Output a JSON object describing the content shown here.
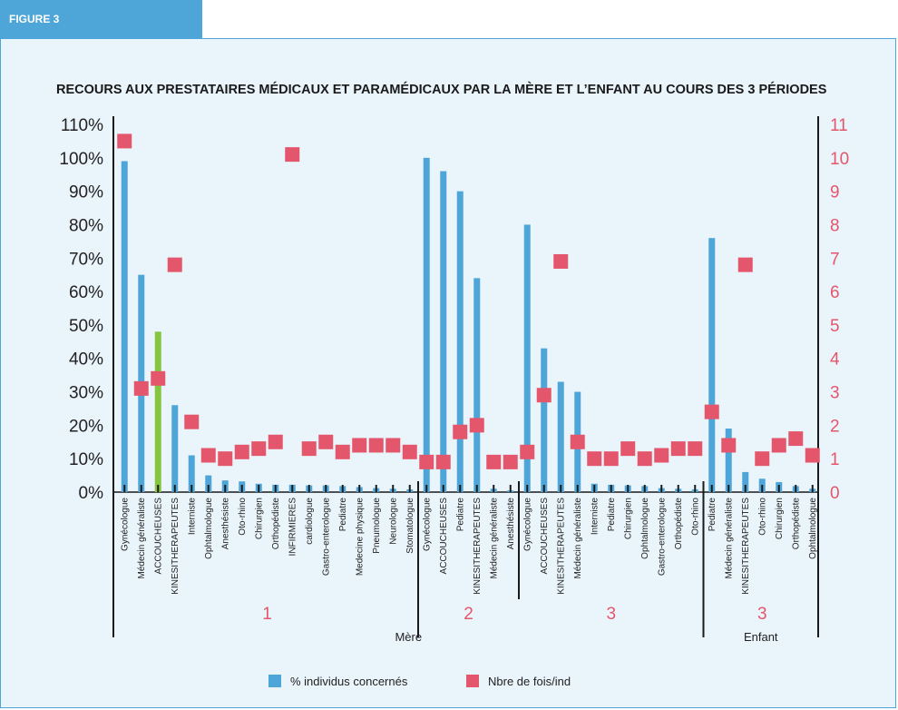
{
  "figure_label": "FIGURE 3",
  "chart_data": {
    "type": "bar",
    "title": "RECOURS AUX PRESTATAIRES MÉDICAUX ET PARAMÉDICAUX PAR LA MÈRE ET L’ENFANT AU COURS DES 3 PÉRIODES",
    "y_left_range": [
      0,
      110
    ],
    "y_left_ticks": [
      "0%",
      "10%",
      "20%",
      "30%",
      "40%",
      "50%",
      "60%",
      "70%",
      "80%",
      "90%",
      "100%",
      "110%"
    ],
    "y_right_range": [
      0,
      11
    ],
    "y_right_ticks": [
      "0",
      "1",
      "2",
      "3",
      "4",
      "5",
      "6",
      "7",
      "8",
      "9",
      "10",
      "11"
    ],
    "categories": [
      "Gynécologue",
      "Médecin généraliste",
      "ACCOUCHEUSES",
      "KINESITHERAPEUTES",
      "Interniste",
      "Ophtalmologue",
      "Anesthésiste",
      "Oto-rhino",
      "Chirurgien",
      "Orthopédiste",
      "INFIRMIERES",
      "cardiologue",
      "Gastro-enterologue",
      "Pediatre",
      "Medecine physique",
      "Pneumologue",
      "Neurologue",
      "Stomatologue",
      "Gynécologue",
      "ACCOUCHEUSES",
      "Pediatre",
      "KINESITHERAPEUTES",
      "Médecin généraliste",
      "Anesthésiste",
      "Gynécologue",
      "ACCOUCHEUSES",
      "KINESITHERAPEUTES",
      "Médecin généraliste",
      "Interniste",
      "Pediatre",
      "Chirurgien",
      "Ophtalmologue",
      "Gastro-enterologue",
      "Orthopédiste",
      "Oto-rhino",
      "Pediatre",
      "Médecin généraliste",
      "KINESITHERAPEUTES",
      "Oto-rhino",
      "Chirurgien",
      "Orthopédiste",
      "Ophtalmologue"
    ],
    "series": [
      {
        "name": "% individus concernés",
        "axis": "left",
        "color": "#4ea6d8",
        "values": [
          99,
          65,
          48,
          26,
          11,
          5,
          3.5,
          3.2,
          2.5,
          2.2,
          2.2,
          2,
          2,
          1.8,
          1.5,
          1.2,
          1,
          0.8,
          100,
          96,
          90,
          64,
          1,
          0.5,
          80,
          43,
          33,
          30,
          2.5,
          2.2,
          2,
          1.8,
          1.2,
          1,
          0.8,
          76,
          19,
          6,
          4,
          3,
          1.8,
          1
        ]
      },
      {
        "name": "Nbre de fois/ind",
        "axis": "right",
        "color": "#e4566b",
        "values": [
          10.5,
          3.1,
          3.4,
          6.8,
          2.1,
          1.1,
          1,
          1.2,
          1.3,
          1.5,
          10.1,
          1.3,
          1.5,
          1.2,
          1.4,
          1.4,
          1.4,
          1.2,
          0.9,
          0.9,
          1.8,
          2,
          0.9,
          0.9,
          1.2,
          2.9,
          6.9,
          1.5,
          1,
          1,
          1.3,
          1,
          1.1,
          1.3,
          1.3,
          2.4,
          1.4,
          6.8,
          1,
          1.4,
          1.6,
          1.1
        ]
      }
    ],
    "highlight": {
      "index": 2,
      "color": "#86c540"
    },
    "periods": [
      "1",
      "2",
      "3",
      "3"
    ],
    "period_sizes": [
      18,
      6,
      11,
      7
    ],
    "groups": [
      "Mère",
      "Enfant"
    ],
    "legend_position": "bottom-center"
  }
}
